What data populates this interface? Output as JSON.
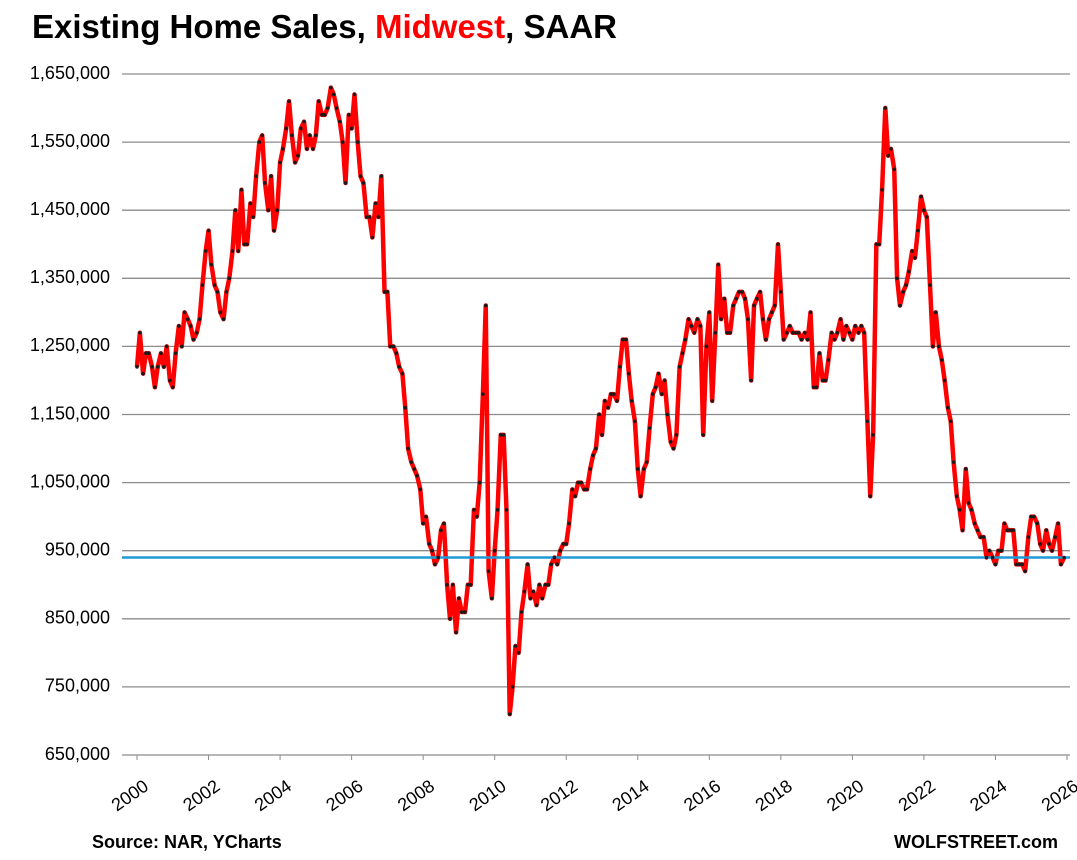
{
  "chart_data": {
    "type": "line",
    "title": [
      "Existing Home Sales, ",
      "Midwest",
      ", SAAR"
    ],
    "title_highlight_color": "#ff0000",
    "source": "Source: NAR, YCharts",
    "credit": "WOLFSTREET.com",
    "x": [
      2000,
      2000.08,
      2000.17,
      2000.25,
      2000.33,
      2000.42,
      2000.5,
      2000.58,
      2000.67,
      2000.75,
      2000.83,
      2000.92,
      2001,
      2001.08,
      2001.17,
      2001.25,
      2001.33,
      2001.42,
      2001.5,
      2001.58,
      2001.67,
      2001.75,
      2001.83,
      2001.92,
      2002,
      2002.08,
      2002.17,
      2002.25,
      2002.33,
      2002.42,
      2002.5,
      2002.58,
      2002.67,
      2002.75,
      2002.83,
      2002.92,
      2003,
      2003.08,
      2003.17,
      2003.25,
      2003.33,
      2003.42,
      2003.5,
      2003.58,
      2003.67,
      2003.75,
      2003.83,
      2003.92,
      2004,
      2004.08,
      2004.17,
      2004.25,
      2004.33,
      2004.42,
      2004.5,
      2004.58,
      2004.67,
      2004.75,
      2004.83,
      2004.92,
      2005,
      2005.08,
      2005.17,
      2005.25,
      2005.33,
      2005.42,
      2005.5,
      2005.58,
      2005.67,
      2005.75,
      2005.83,
      2005.92,
      2006,
      2006.08,
      2006.17,
      2006.25,
      2006.33,
      2006.42,
      2006.5,
      2006.58,
      2006.67,
      2006.75,
      2006.83,
      2006.92,
      2007,
      2007.08,
      2007.17,
      2007.25,
      2007.33,
      2007.42,
      2007.5,
      2007.58,
      2007.67,
      2007.75,
      2007.83,
      2007.92,
      2008,
      2008.08,
      2008.17,
      2008.25,
      2008.33,
      2008.42,
      2008.5,
      2008.58,
      2008.67,
      2008.75,
      2008.83,
      2008.92,
      2009,
      2009.08,
      2009.17,
      2009.25,
      2009.33,
      2009.42,
      2009.5,
      2009.58,
      2009.67,
      2009.75,
      2009.83,
      2009.92,
      2010,
      2010.08,
      2010.17,
      2010.25,
      2010.33,
      2010.42,
      2010.5,
      2010.58,
      2010.67,
      2010.75,
      2010.83,
      2010.92,
      2011,
      2011.08,
      2011.17,
      2011.25,
      2011.33,
      2011.42,
      2011.5,
      2011.58,
      2011.67,
      2011.75,
      2011.83,
      2011.92,
      2012,
      2012.08,
      2012.17,
      2012.25,
      2012.33,
      2012.42,
      2012.5,
      2012.58,
      2012.67,
      2012.75,
      2012.83,
      2012.92,
      2013,
      2013.08,
      2013.17,
      2013.25,
      2013.33,
      2013.42,
      2013.5,
      2013.58,
      2013.67,
      2013.75,
      2013.83,
      2013.92,
      2014,
      2014.08,
      2014.17,
      2014.25,
      2014.33,
      2014.42,
      2014.5,
      2014.58,
      2014.67,
      2014.75,
      2014.83,
      2014.92,
      2015,
      2015.08,
      2015.17,
      2015.25,
      2015.33,
      2015.42,
      2015.5,
      2015.58,
      2015.67,
      2015.75,
      2015.83,
      2015.92,
      2016,
      2016.08,
      2016.17,
      2016.25,
      2016.33,
      2016.42,
      2016.5,
      2016.58,
      2016.67,
      2016.75,
      2016.83,
      2016.92,
      2017,
      2017.08,
      2017.17,
      2017.25,
      2017.33,
      2017.42,
      2017.5,
      2017.58,
      2017.67,
      2017.75,
      2017.83,
      2017.92,
      2018,
      2018.08,
      2018.17,
      2018.25,
      2018.33,
      2018.42,
      2018.5,
      2018.58,
      2018.67,
      2018.75,
      2018.83,
      2018.92,
      2019,
      2019.08,
      2019.17,
      2019.25,
      2019.33,
      2019.42,
      2019.5,
      2019.58,
      2019.67,
      2019.75,
      2019.83,
      2019.92,
      2020,
      2020.08,
      2020.17,
      2020.25,
      2020.33,
      2020.42,
      2020.5,
      2020.58,
      2020.67,
      2020.75,
      2020.83,
      2020.92,
      2021,
      2021.08,
      2021.17,
      2021.25,
      2021.33,
      2021.42,
      2021.5,
      2021.58,
      2021.67,
      2021.75,
      2021.83,
      2021.92,
      2022,
      2022.08,
      2022.17,
      2022.25,
      2022.33,
      2022.42,
      2022.5,
      2022.58,
      2022.67,
      2022.75,
      2022.83,
      2022.92,
      2023,
      2023.08,
      2023.17,
      2023.25,
      2023.33,
      2023.42,
      2023.5,
      2023.58,
      2023.67,
      2023.75,
      2023.83,
      2023.92,
      2024,
      2024.08,
      2024.17,
      2024.25,
      2024.33,
      2024.42,
      2024.5,
      2024.58,
      2024.67,
      2024.75,
      2024.83,
      2024.92,
      2025,
      2025.08,
      2025.17,
      2025.25,
      2025.33,
      2025.42,
      2025.5,
      2025.58,
      2025.67,
      2025.75,
      2025.83,
      2025.92
    ],
    "values": [
      1220000,
      1270000,
      1210000,
      1240000,
      1240000,
      1220000,
      1190000,
      1220000,
      1240000,
      1220000,
      1250000,
      1200000,
      1190000,
      1240000,
      1280000,
      1250000,
      1300000,
      1290000,
      1280000,
      1260000,
      1270000,
      1290000,
      1340000,
      1390000,
      1420000,
      1370000,
      1340000,
      1330000,
      1300000,
      1290000,
      1330000,
      1350000,
      1390000,
      1450000,
      1390000,
      1480000,
      1400000,
      1400000,
      1460000,
      1440000,
      1500000,
      1550000,
      1560000,
      1490000,
      1450000,
      1500000,
      1420000,
      1450000,
      1520000,
      1540000,
      1570000,
      1610000,
      1560000,
      1520000,
      1530000,
      1570000,
      1580000,
      1540000,
      1560000,
      1540000,
      1560000,
      1610000,
      1590000,
      1590000,
      1600000,
      1630000,
      1620000,
      1600000,
      1580000,
      1550000,
      1490000,
      1590000,
      1570000,
      1620000,
      1550000,
      1500000,
      1490000,
      1440000,
      1440000,
      1410000,
      1460000,
      1440000,
      1500000,
      1330000,
      1330000,
      1250000,
      1250000,
      1240000,
      1220000,
      1210000,
      1160000,
      1100000,
      1080000,
      1070000,
      1060000,
      1040000,
      990000,
      1000000,
      960000,
      950000,
      930000,
      940000,
      980000,
      990000,
      900000,
      850000,
      900000,
      830000,
      880000,
      860000,
      860000,
      900000,
      900000,
      1010000,
      1000000,
      1050000,
      1180000,
      1310000,
      920000,
      880000,
      950000,
      1010000,
      1120000,
      1120000,
      1010000,
      710000,
      750000,
      810000,
      800000,
      860000,
      890000,
      930000,
      880000,
      890000,
      870000,
      900000,
      880000,
      900000,
      900000,
      930000,
      940000,
      930000,
      950000,
      960000,
      960000,
      990000,
      1040000,
      1030000,
      1050000,
      1050000,
      1040000,
      1040000,
      1070000,
      1090000,
      1100000,
      1150000,
      1120000,
      1170000,
      1160000,
      1180000,
      1180000,
      1170000,
      1220000,
      1260000,
      1260000,
      1210000,
      1170000,
      1140000,
      1070000,
      1030000,
      1070000,
      1080000,
      1130000,
      1180000,
      1190000,
      1210000,
      1180000,
      1200000,
      1150000,
      1110000,
      1100000,
      1120000,
      1220000,
      1240000,
      1260000,
      1290000,
      1280000,
      1270000,
      1290000,
      1280000,
      1120000,
      1250000,
      1300000,
      1170000,
      1270000,
      1370000,
      1290000,
      1320000,
      1270000,
      1270000,
      1310000,
      1320000,
      1330000,
      1330000,
      1320000,
      1290000,
      1200000,
      1310000,
      1320000,
      1330000,
      1290000,
      1260000,
      1290000,
      1300000,
      1310000,
      1400000,
      1330000,
      1260000,
      1270000,
      1280000,
      1270000,
      1270000,
      1270000,
      1260000,
      1270000,
      1260000,
      1300000,
      1190000,
      1190000,
      1240000,
      1200000,
      1200000,
      1230000,
      1270000,
      1260000,
      1270000,
      1290000,
      1260000,
      1280000,
      1270000,
      1260000,
      1280000,
      1270000,
      1280000,
      1270000,
      1140000,
      1030000,
      1120000,
      1400000,
      1400000,
      1480000,
      1600000,
      1530000,
      1540000,
      1510000,
      1350000,
      1310000,
      1330000,
      1340000,
      1360000,
      1390000,
      1380000,
      1420000,
      1470000,
      1450000,
      1440000,
      1340000,
      1250000,
      1300000,
      1250000,
      1230000,
      1200000,
      1160000,
      1140000,
      1080000,
      1030000,
      1010000,
      980000,
      1070000,
      1020000,
      1010000,
      990000,
      980000,
      970000,
      970000,
      940000,
      950000,
      940000,
      930000,
      950000,
      950000,
      990000,
      980000,
      980000,
      980000,
      930000,
      930000,
      930000,
      920000,
      970000,
      1000000,
      1000000,
      990000,
      960000,
      950000,
      980000,
      960000,
      950000,
      970000,
      990000,
      930000,
      940000
    ],
    "color": "#ff0000",
    "marker_color": "#1a1a1a",
    "reference_line": {
      "value": 940000,
      "color": "#1e9ad6"
    },
    "xlim": [
      2000,
      2026
    ],
    "xticks": [
      2000,
      2002,
      2004,
      2006,
      2008,
      2010,
      2012,
      2014,
      2016,
      2018,
      2020,
      2022,
      2024,
      2026
    ],
    "ylim": [
      650000,
      1650000
    ],
    "yticks": [
      {
        "value": 650000,
        "label": "650,000"
      },
      {
        "value": 750000,
        "label": "750,000"
      },
      {
        "value": 850000,
        "label": "850,000"
      },
      {
        "value": 950000,
        "label": "950,000"
      },
      {
        "value": 1050000,
        "label": "1,050,000"
      },
      {
        "value": 1150000,
        "label": "1,150,000"
      },
      {
        "value": 1250000,
        "label": "1,250,000"
      },
      {
        "value": 1350000,
        "label": "1,350,000"
      },
      {
        "value": 1450000,
        "label": "1,450,000"
      },
      {
        "value": 1550000,
        "label": "1,550,000"
      },
      {
        "value": 1650000,
        "label": "1,650,000"
      }
    ],
    "grid": true
  }
}
